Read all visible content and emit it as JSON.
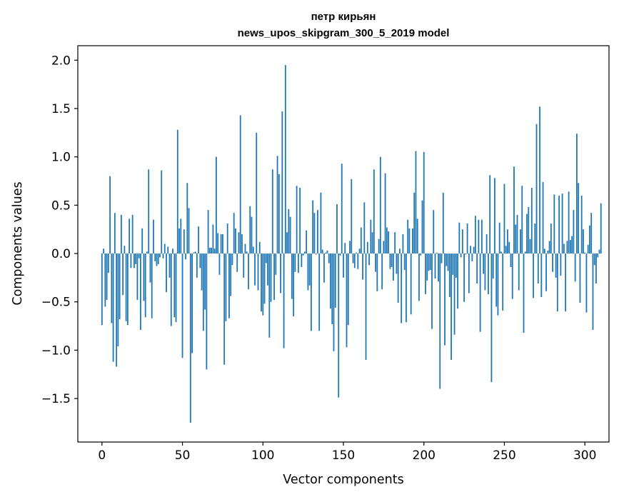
{
  "chart_data": {
    "type": "bar",
    "title_line1": "петр кирьян",
    "title_line2": "news_upos_skipgram_300_5_2019 model",
    "xlabel": "Vector components",
    "ylabel": "Components values",
    "xlim": [
      -15,
      315
    ],
    "ylim": [
      -1.95,
      2.15
    ],
    "xticks": [
      0,
      50,
      100,
      150,
      200,
      250,
      300
    ],
    "xtick_labels": [
      "0",
      "50",
      "100",
      "150",
      "200",
      "250",
      "300"
    ],
    "yticks": [
      -1.5,
      -1.0,
      -0.5,
      0.0,
      0.5,
      1.0,
      1.5,
      2.0
    ],
    "ytick_labels": [
      "−1.5",
      "−1.0",
      "−0.5",
      "0.0",
      "0.5",
      "1.0",
      "1.5",
      "2.0"
    ],
    "grid": false,
    "bar_color": "#1f77b4",
    "values": [
      -0.74,
      0.05,
      -0.55,
      -0.48,
      -0.2,
      0.8,
      -0.72,
      -1.12,
      0.42,
      -1.17,
      -0.96,
      -0.68,
      0.4,
      -0.43,
      0.08,
      -0.7,
      -0.74,
      0.36,
      -0.15,
      0.4,
      -0.15,
      -0.11,
      -0.48,
      -0.05,
      -0.79,
      0.26,
      -0.49,
      -0.66,
      0.02,
      0.87,
      -0.3,
      -0.67,
      0.35,
      -0.08,
      -0.13,
      -0.11,
      -0.04,
      0.86,
      -0.05,
      0.1,
      -0.4,
      0.07,
      -0.25,
      -0.75,
      0.05,
      -0.66,
      -0.71,
      1.28,
      0.26,
      0.36,
      -1.08,
      0.25,
      -0.06,
      0.73,
      0.47,
      -1.75,
      -1.03,
      0.01,
      0.02,
      -0.25,
      0.28,
      -0.15,
      -0.38,
      -0.8,
      -0.58,
      -1.2,
      0.45,
      0.06,
      0.06,
      0.3,
      0.05,
      1.0,
      0.21,
      -0.22,
      0.2,
      0.2,
      -1.15,
      -0.7,
      0.31,
      -0.67,
      -0.44,
      -0.12,
      0.42,
      0.26,
      -0.19,
      0.22,
      1.43,
      0.2,
      -0.25,
      0.1,
      0.02,
      -0.37,
      0.49,
      0.38,
      0.07,
      -0.33,
      1.25,
      -0.38,
      0.12,
      -0.6,
      -0.64,
      -0.52,
      -0.1,
      -0.33,
      -0.87,
      -0.5,
      0.87,
      -0.48,
      -0.22,
      1.01,
      0.82,
      -0.41,
      1.47,
      -0.98,
      1.95,
      0.22,
      0.46,
      0.38,
      -0.47,
      -0.65,
      -0.19,
      0.7,
      -0.2,
      0.68,
      -0.14,
      -0.02,
      0.02,
      0.24,
      -0.38,
      -0.33,
      -0.8,
      0.55,
      0.42,
      -0.01,
      0.45,
      -0.8,
      0.63,
      0.04,
      -0.3,
      0.01,
      0.03,
      -0.1,
      -0.57,
      -0.73,
      -1.01,
      -0.56,
      0.51,
      -1.49,
      -0.02,
      0.93,
      -0.25,
      0.11,
      -0.97,
      -0.74,
      0.13,
      0.77,
      -0.1,
      -0.15,
      0.01,
      -0.16,
      0.05,
      0.27,
      -0.27,
      0.53,
      -1.1,
      0.12,
      -0.12,
      0.35,
      0.22,
      0.87,
      -0.19,
      -0.39,
      0.15,
      1.0,
      -0.37,
      0.13,
      0.83,
      0.27,
      0.23,
      -0.16,
      -0.14,
      -0.28,
      0.22,
      -0.21,
      -0.51,
      0.05,
      -0.72,
      0.2,
      -0.17,
      -0.71,
      0.35,
      0.26,
      -0.63,
      0.26,
      0.63,
      1.06,
      0.36,
      -0.49,
      -0.02,
      0.55,
      1.05,
      -0.42,
      -0.28,
      -0.18,
      -0.17,
      -0.78,
      0.45,
      -0.26,
      0.01,
      -0.29,
      -1.4,
      -0.1,
      0.63,
      -0.95,
      -0.13,
      -0.18,
      -0.45,
      -1.1,
      -0.22,
      -0.84,
      -0.25,
      -0.57,
      0.32,
      -0.04,
      0.25,
      -0.5,
      -0.01,
      0.31,
      -0.41,
      0.08,
      -0.08,
      0.07,
      0.39,
      -0.31,
      0.35,
      -0.81,
      0.35,
      -0.21,
      -0.38,
      0.2,
      -0.42,
      0.81,
      -1.33,
      -0.26,
      0.78,
      -0.55,
      -0.64,
      0.32,
      0.02,
      -0.59,
      0.72,
      0.08,
      0.25,
      0.12,
      -0.14,
      -0.47,
      0.9,
      0.3,
      0.4,
      -0.38,
      0.25,
      0.7,
      -0.82,
      0.02,
      0.41,
      0.48,
      0.15,
      0.68,
      -0.46,
      0.31,
      1.34,
      -0.31,
      1.52,
      -0.45,
      0.74,
      0.05,
      -0.39,
      0.03,
      0.13,
      0.31,
      -0.19,
      0.61,
      -0.25,
      -0.6,
      0.6,
      -0.23,
      0.62,
      0.1,
      -0.6,
      0.13,
      0.64,
      0.14,
      0.18,
      0.45,
      -0.29,
      1.24,
      0.73,
      -0.51,
      0.6,
      0.25,
      0.01,
      -0.61,
      0.09,
      0.29,
      0.42,
      -0.79,
      -0.12,
      -0.31,
      -0.04,
      0.04,
      0.52
    ]
  }
}
